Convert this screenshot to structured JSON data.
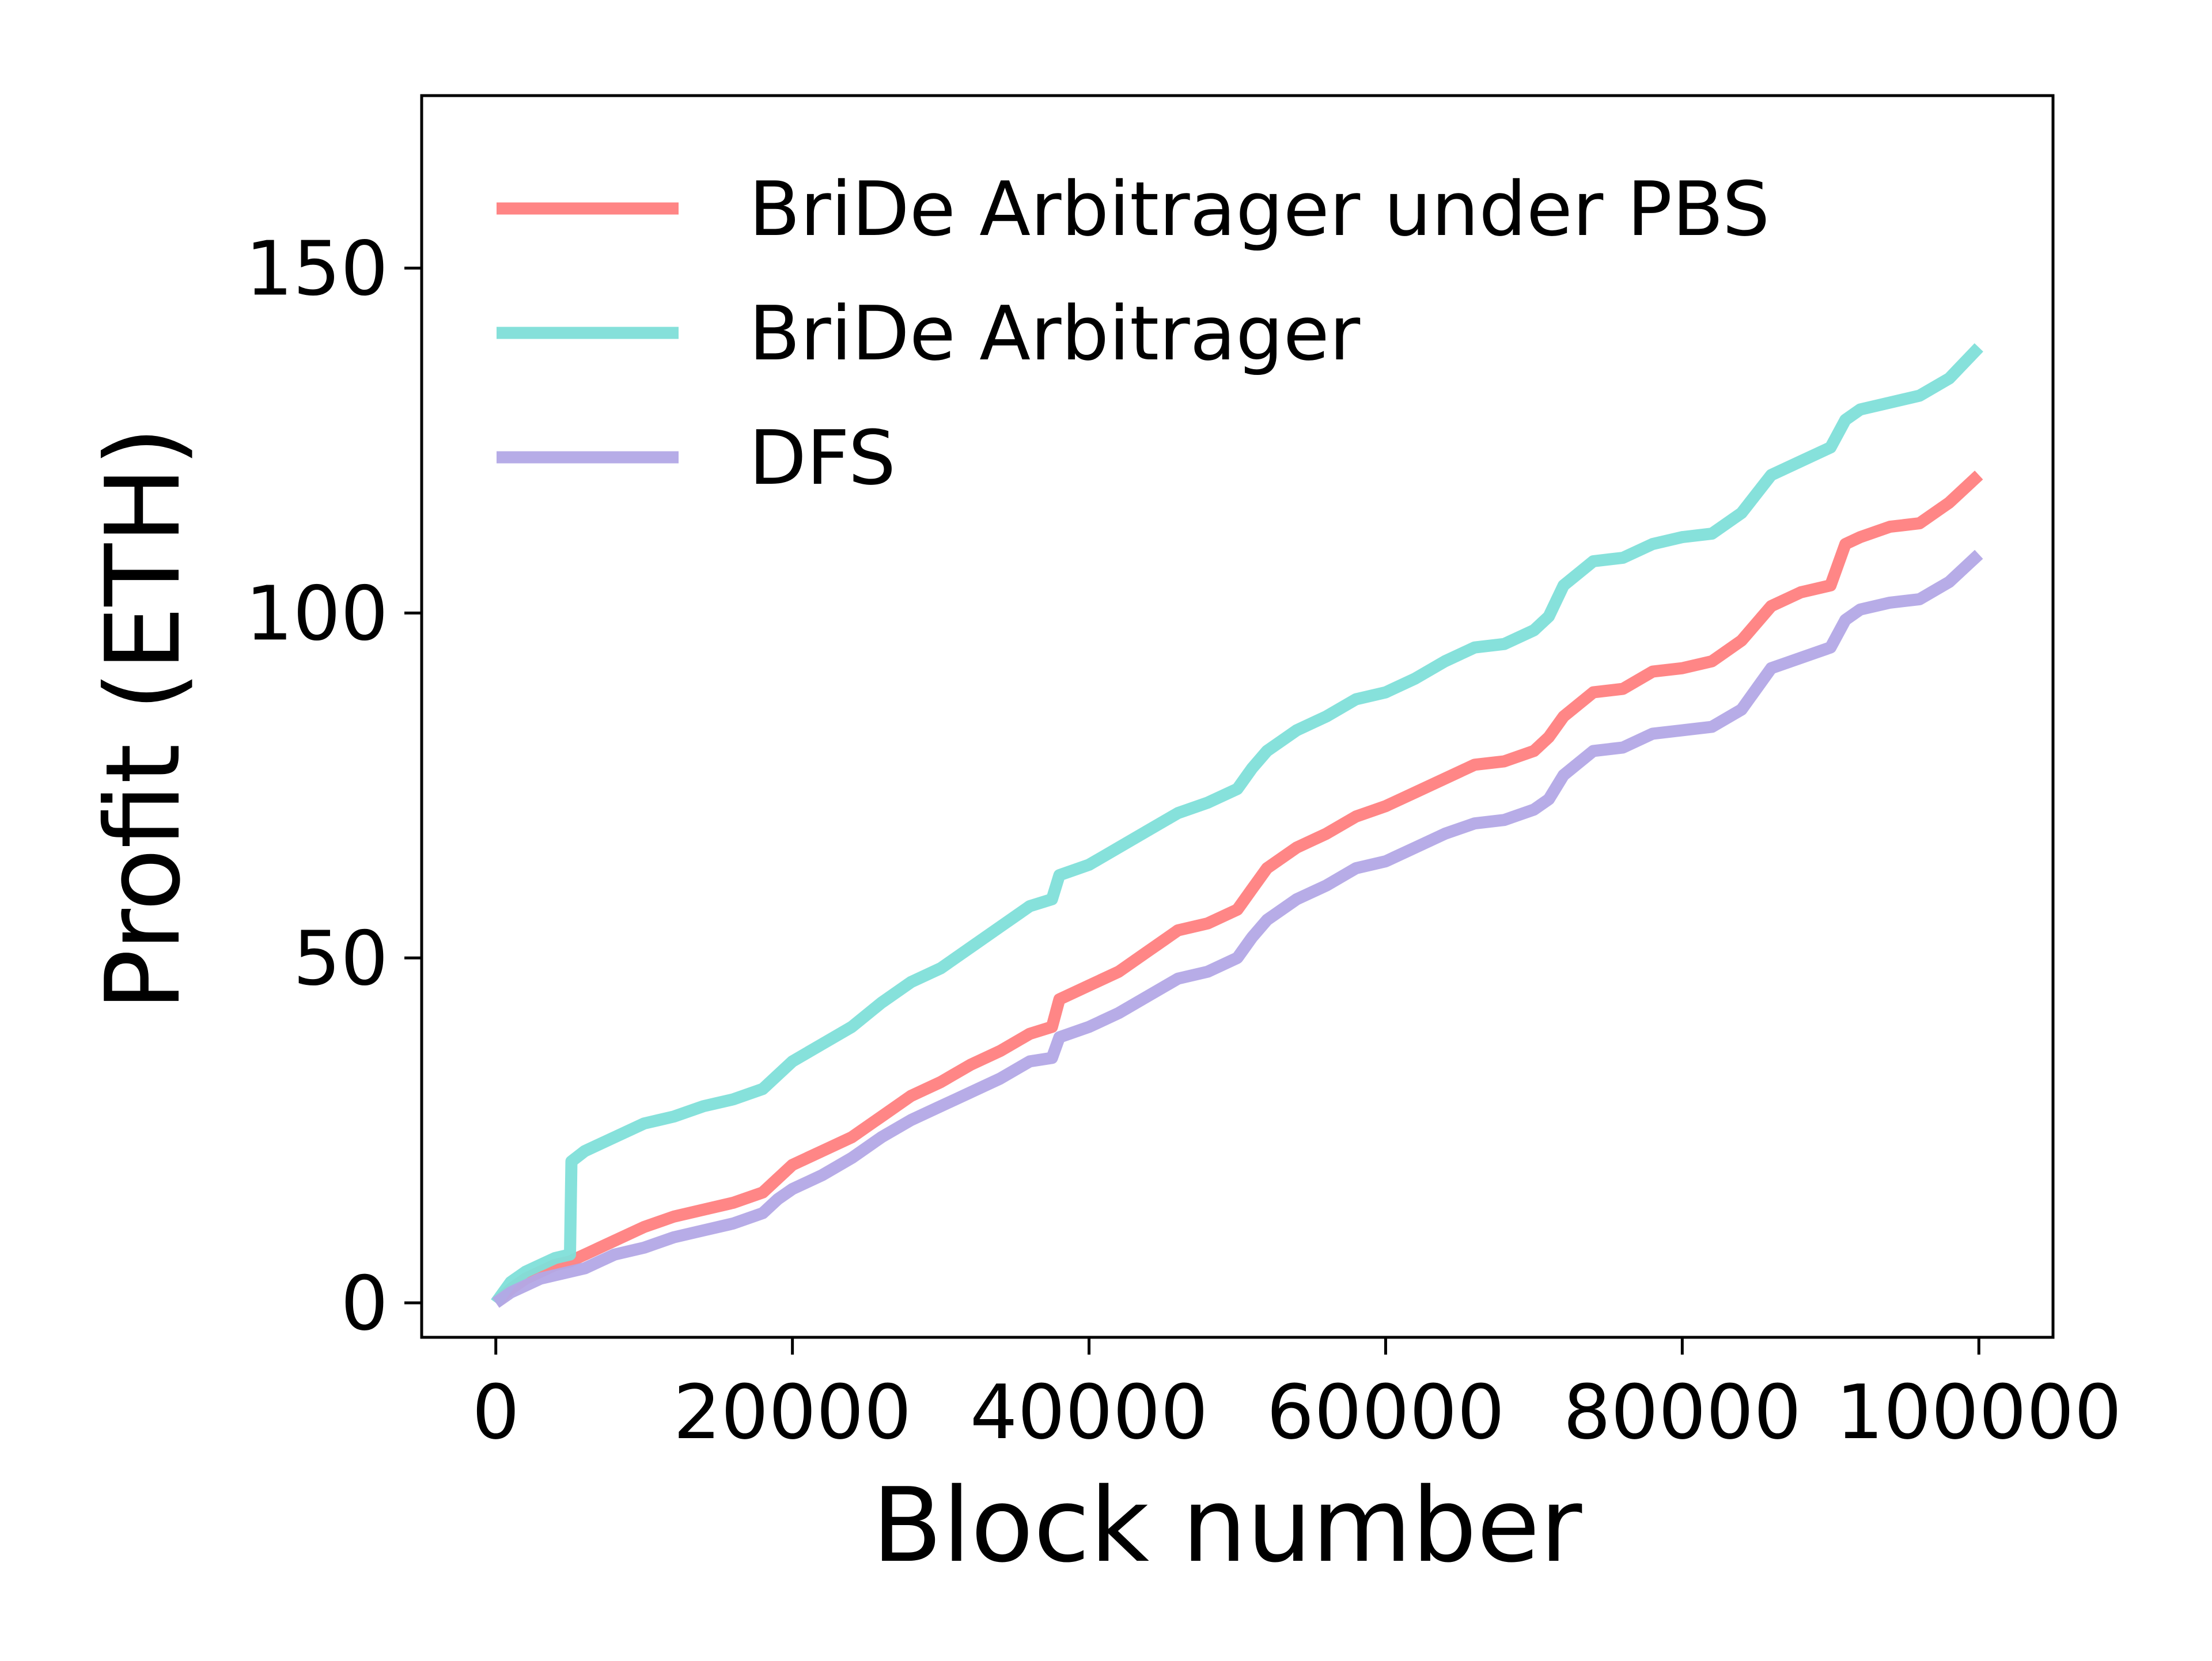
{
  "chart_data": {
    "type": "line",
    "title": "",
    "xlabel": "Block number",
    "ylabel": "Profit (ETH)",
    "xlim": [
      -5000,
      105000
    ],
    "ylim": [
      -5,
      175
    ],
    "xticks": [
      0,
      20000,
      40000,
      60000,
      80000,
      100000
    ],
    "xtick_labels": [
      "0",
      "20000",
      "40000",
      "60000",
      "80000",
      "100000"
    ],
    "yticks": [
      0,
      50,
      100,
      150
    ],
    "ytick_labels": [
      "0",
      "50",
      "100",
      "150"
    ],
    "grid": false,
    "legend_position": "top-left",
    "series": [
      {
        "name": "BriDe Arbitrager under PBS",
        "color": "#ff7f7f",
        "x": [
          0,
          1000,
          2000,
          3000,
          4000,
          5000,
          6000,
          7000,
          8000,
          10000,
          12000,
          14000,
          16000,
          18000,
          19000,
          20000,
          22000,
          24000,
          26000,
          28000,
          30000,
          32000,
          34000,
          36000,
          37500,
          38000,
          40000,
          42000,
          44000,
          46000,
          48000,
          50000,
          51000,
          52000,
          54000,
          56000,
          58000,
          60000,
          62000,
          64000,
          66000,
          68000,
          70000,
          71000,
          72000,
          74000,
          76000,
          78000,
          80000,
          82000,
          84000,
          86000,
          88000,
          90000,
          91000,
          92000,
          94000,
          96000,
          98000,
          100000
        ],
        "y": [
          0,
          2,
          3.5,
          4.5,
          5.5,
          6,
          7,
          8,
          9,
          11,
          12.5,
          13.5,
          14.5,
          16,
          18,
          20,
          22,
          24,
          27,
          30,
          32,
          34.5,
          36.5,
          39,
          40,
          44,
          46,
          48,
          51,
          54,
          55,
          57,
          60,
          63,
          66,
          68,
          70.5,
          72,
          74,
          76,
          78,
          78.5,
          80,
          82,
          85,
          88.5,
          89,
          91.5,
          92,
          93,
          96,
          101,
          103,
          104,
          110,
          111,
          112.5,
          113,
          116,
          120
        ]
      },
      {
        "name": "BriDe Arbitrager",
        "color": "#7fdfd9",
        "x": [
          0,
          1000,
          2000,
          3000,
          4000,
          5000,
          5100,
          6000,
          8000,
          10000,
          12000,
          14000,
          16000,
          18000,
          19000,
          20000,
          22000,
          24000,
          26000,
          28000,
          30000,
          32000,
          34000,
          36000,
          37500,
          38000,
          40000,
          42000,
          44000,
          46000,
          48000,
          50000,
          51000,
          52000,
          54000,
          56000,
          58000,
          60000,
          62000,
          64000,
          66000,
          68000,
          70000,
          71000,
          72000,
          74000,
          76000,
          78000,
          80000,
          82000,
          84000,
          86000,
          88000,
          90000,
          91000,
          92000,
          94000,
          96000,
          98000,
          100000
        ],
        "y": [
          0,
          3,
          4.5,
          5.5,
          6.5,
          7,
          20.5,
          22,
          24,
          26,
          27,
          28.5,
          29.5,
          31,
          33,
          35,
          37.5,
          40,
          43.5,
          46.5,
          48.5,
          51.5,
          54.5,
          57.5,
          58.5,
          62,
          63.5,
          66,
          68.5,
          71,
          72.5,
          74.5,
          77.5,
          80,
          83,
          85,
          87.5,
          88.5,
          90.5,
          93,
          95,
          95.5,
          97.5,
          99.5,
          104,
          107.5,
          108,
          110,
          111,
          111.5,
          114.5,
          120,
          122,
          124,
          128,
          129.5,
          130.5,
          131.5,
          134,
          138.5
        ]
      },
      {
        "name": "DFS",
        "color": "#b3a8e6",
        "x": [
          0,
          1000,
          2000,
          3000,
          4000,
          5000,
          6000,
          7000,
          8000,
          10000,
          12000,
          14000,
          16000,
          18000,
          19000,
          20000,
          22000,
          24000,
          26000,
          28000,
          30000,
          32000,
          34000,
          36000,
          37500,
          38000,
          40000,
          42000,
          44000,
          46000,
          48000,
          50000,
          51000,
          52000,
          54000,
          56000,
          58000,
          60000,
          62000,
          64000,
          66000,
          68000,
          70000,
          71000,
          72000,
          74000,
          76000,
          78000,
          80000,
          82000,
          84000,
          86000,
          88000,
          90000,
          91000,
          92000,
          94000,
          96000,
          98000,
          100000
        ],
        "y": [
          0,
          1.5,
          2.5,
          3.5,
          4,
          4.5,
          5,
          6,
          7,
          8,
          9.5,
          10.5,
          11.5,
          13,
          15,
          16.5,
          18.5,
          21,
          24,
          26.5,
          28.5,
          30.5,
          32.5,
          35,
          35.5,
          38.5,
          40,
          42,
          44.5,
          47,
          48,
          50,
          53,
          55.5,
          58.5,
          60.5,
          63,
          64,
          66,
          68,
          69.5,
          70,
          71.5,
          73,
          76.5,
          80,
          80.5,
          82.5,
          83,
          83.5,
          86,
          92,
          93.5,
          95,
          99,
          100.5,
          101.5,
          102,
          104.5,
          108.5
        ]
      }
    ]
  }
}
